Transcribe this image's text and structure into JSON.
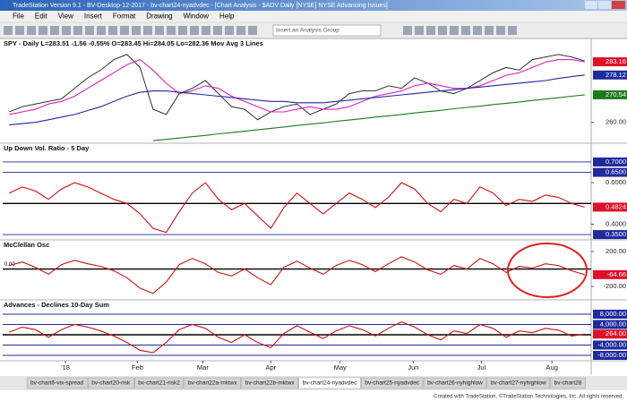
{
  "window": {
    "title": "TradeStation Version 9.1 - BV-Desktop-12-2017 - bv-chart24-nyadvdec - [Chart Analysis - $ADV Daily [NYSE] NYSE Advancing Issues]",
    "menu": [
      "File",
      "Edit",
      "View",
      "Insert",
      "Format",
      "Drawing",
      "Window",
      "Help"
    ],
    "toolbar_dropdown": "Insert an Analysis Group"
  },
  "chart_data": [
    {
      "type": "line",
      "title": "SPY - Daily  L=283.51  -1.56  -0.55%  O=283.45  Hi=284.05  Lo=282.36  Mov Avg 3 Lines",
      "xlim": [
        -0.5,
        44.5
      ],
      "ylim": [
        252.7,
        291.4
      ],
      "yticks": [
        {
          "value": 260,
          "label": "260.00"
        }
      ],
      "markers": [
        {
          "value": 283.16,
          "label": "283.16",
          "color": "#e0102a"
        },
        {
          "value": 278.12,
          "label": "278.12",
          "color": "#1f2a9c"
        },
        {
          "value": 270.54,
          "label": "270.54",
          "color": "#1d7a1d"
        }
      ],
      "series": [
        {
          "name": "SPY",
          "color": "#1b1b1b",
          "values": [
            264,
            266,
            267,
            268,
            269,
            273,
            277,
            280,
            284,
            286,
            281,
            265,
            263,
            271,
            273,
            276,
            271,
            266,
            265,
            261,
            264,
            266,
            267,
            263,
            265,
            267,
            271,
            272,
            272,
            274,
            273,
            277,
            275,
            272,
            271,
            273,
            276,
            279,
            281,
            280,
            284,
            285,
            286,
            285,
            283.5
          ]
        },
        {
          "name": "Mov Avg 1",
          "color": "#e020c0",
          "values": [
            263,
            264,
            265,
            267,
            268,
            270,
            273,
            276,
            279,
            282,
            284,
            280,
            275,
            271,
            272,
            274,
            273,
            270,
            268,
            266,
            264,
            264,
            265,
            266,
            265,
            265,
            266,
            268,
            270,
            271,
            272,
            274,
            275,
            274,
            273,
            273,
            274,
            276,
            278,
            279,
            281,
            283,
            284,
            284,
            283.16
          ]
        },
        {
          "name": "Mov Avg 2",
          "color": "#1f2a9c",
          "values": [
            259,
            259.5,
            260,
            261,
            262,
            263,
            264.5,
            266,
            268,
            270,
            271.5,
            272,
            272,
            271.5,
            271,
            270.5,
            270,
            269.5,
            269,
            268.5,
            268,
            268,
            267.5,
            267.5,
            267.5,
            268,
            268.5,
            269,
            269.5,
            270,
            270.5,
            271,
            271.5,
            272,
            272.5,
            273,
            273.5,
            274,
            274.5,
            275,
            275.5,
            276,
            276.8,
            277.5,
            278.12
          ]
        },
        {
          "name": "Mov Avg 3",
          "color": "#1d7a1d",
          "values": [
            null,
            null,
            null,
            null,
            null,
            null,
            null,
            null,
            null,
            null,
            null,
            253,
            253.5,
            254,
            254.5,
            255,
            255.6,
            256.1,
            256.6,
            257.2,
            257.7,
            258.2,
            258.8,
            259.3,
            259.8,
            260.4,
            260.9,
            261.4,
            262,
            262.5,
            263,
            263.6,
            264.1,
            264.6,
            265.2,
            265.7,
            266.2,
            266.8,
            267.3,
            267.8,
            268.4,
            268.9,
            269.4,
            270,
            270.54
          ]
        }
      ]
    },
    {
      "type": "line",
      "title": "Up Down Vol. Ratio - 5 Day",
      "xlim": [
        -0.5,
        44.5
      ],
      "ylim": [
        0.333,
        0.7776
      ],
      "baseline": 0.5,
      "yticks": [
        {
          "value": 0.6,
          "label": "0.6000"
        },
        {
          "value": 0.4,
          "label": "0.4000"
        }
      ],
      "markers": [
        {
          "value": 0.7,
          "label": "0.7000",
          "color": "#1f2a9c",
          "line": true
        },
        {
          "value": 0.65,
          "label": "0.6500",
          "color": "#1f2a9c",
          "line": true
        },
        {
          "value": 0.4824,
          "label": "0.4824",
          "color": "#e0102a"
        },
        {
          "value": 0.35,
          "label": "0.3500",
          "color": "#1f2a9c",
          "line": true
        }
      ],
      "series": [
        {
          "name": "Ratio",
          "color": "#d01010",
          "values": [
            0.55,
            0.58,
            0.56,
            0.52,
            0.57,
            0.6,
            0.58,
            0.55,
            0.52,
            0.5,
            0.45,
            0.38,
            0.36,
            0.46,
            0.55,
            0.6,
            0.52,
            0.47,
            0.5,
            0.44,
            0.38,
            0.48,
            0.55,
            0.5,
            0.45,
            0.5,
            0.55,
            0.52,
            0.48,
            0.53,
            0.6,
            0.57,
            0.5,
            0.46,
            0.52,
            0.5,
            0.58,
            0.55,
            0.49,
            0.52,
            0.51,
            0.54,
            0.53,
            0.5,
            0.4824
          ]
        }
      ]
    },
    {
      "type": "line",
      "title": "McClellan Osc",
      "xlim": [
        -0.5,
        44.5
      ],
      "ylim": [
        -333,
        313
      ],
      "zero_label": {
        "value": 0,
        "label": "0.00"
      },
      "yticks": [
        {
          "value": 200,
          "label": "200.00"
        },
        {
          "value": -200,
          "label": "-200.00"
        }
      ],
      "markers": [
        {
          "value": -64.66,
          "label": "-64.66",
          "color": "#e0102a"
        }
      ],
      "series": [
        {
          "name": "McClellan",
          "color": "#d01010",
          "values": [
            40,
            80,
            20,
            -60,
            50,
            100,
            60,
            30,
            -20,
            -100,
            -220,
            -280,
            -150,
            50,
            120,
            60,
            -40,
            -80,
            0,
            -100,
            -180,
            20,
            90,
            10,
            -60,
            40,
            100,
            50,
            -30,
            60,
            140,
            80,
            -10,
            -60,
            40,
            0,
            120,
            60,
            -40,
            30,
            10,
            60,
            40,
            -20,
            -64.66
          ]
        }
      ]
    },
    {
      "type": "line",
      "title": "Advances - Declines 10-Day Sum",
      "xlim": [
        -0.5,
        44.5
      ],
      "ylim": [
        -9739,
        12522
      ],
      "baseline": 0,
      "markers": [
        {
          "value": 8000,
          "label": "8,000.00",
          "color": "#1f2a9c",
          "line": true
        },
        {
          "value": 4000,
          "label": "4,000.00",
          "color": "#1f2a9c",
          "line": true
        },
        {
          "value": 264,
          "label": "264.00",
          "color": "#e0102a"
        },
        {
          "value": -4000,
          "label": "-4,000.00",
          "color": "#1f2a9c",
          "line": true
        },
        {
          "value": -8000,
          "label": "-8,000.00",
          "color": "#1f2a9c",
          "line": true
        }
      ],
      "series": [
        {
          "name": "A-D Sum",
          "color": "#d01010",
          "values": [
            1000,
            3000,
            2000,
            -1000,
            2000,
            4000,
            3000,
            1500,
            -500,
            -3000,
            -6000,
            -7000,
            -3000,
            2000,
            4000,
            2500,
            -1000,
            -3000,
            0,
            -3000,
            -5000,
            500,
            3500,
            1000,
            -1500,
            1500,
            3500,
            2000,
            -500,
            2500,
            5000,
            3000,
            0,
            -2000,
            1500,
            500,
            4000,
            2500,
            -1000,
            1500,
            800,
            2500,
            1800,
            -500,
            264
          ]
        }
      ],
      "xticks": [
        {
          "value": 4.3,
          "label": "'18"
        },
        {
          "value": 9.8,
          "label": "Feb"
        },
        {
          "value": 14.8,
          "label": "Mar"
        },
        {
          "value": 20,
          "label": "Apr"
        },
        {
          "value": 25.3,
          "label": "May"
        },
        {
          "value": 30.9,
          "label": "Jun"
        },
        {
          "value": 36.1,
          "label": "Jul"
        },
        {
          "value": 41.5,
          "label": "Aug"
        }
      ]
    }
  ],
  "tabs": [
    "bv-chart6-vix-spread",
    "bv-chart20-risk",
    "bv-chart21-risk2",
    "bv-chart22a-mktwx",
    "bv-chart22b-mktwx",
    "bv-chart24-nyadvdec",
    "bv-chart25-nyadvdec",
    "bv-chart26-nyhighlow",
    "bv-chart27-nyhighlow",
    "bv-chart28"
  ],
  "footer": "Created with TradeStation. ©TradeStation Technologies, Inc. All rights reserved."
}
